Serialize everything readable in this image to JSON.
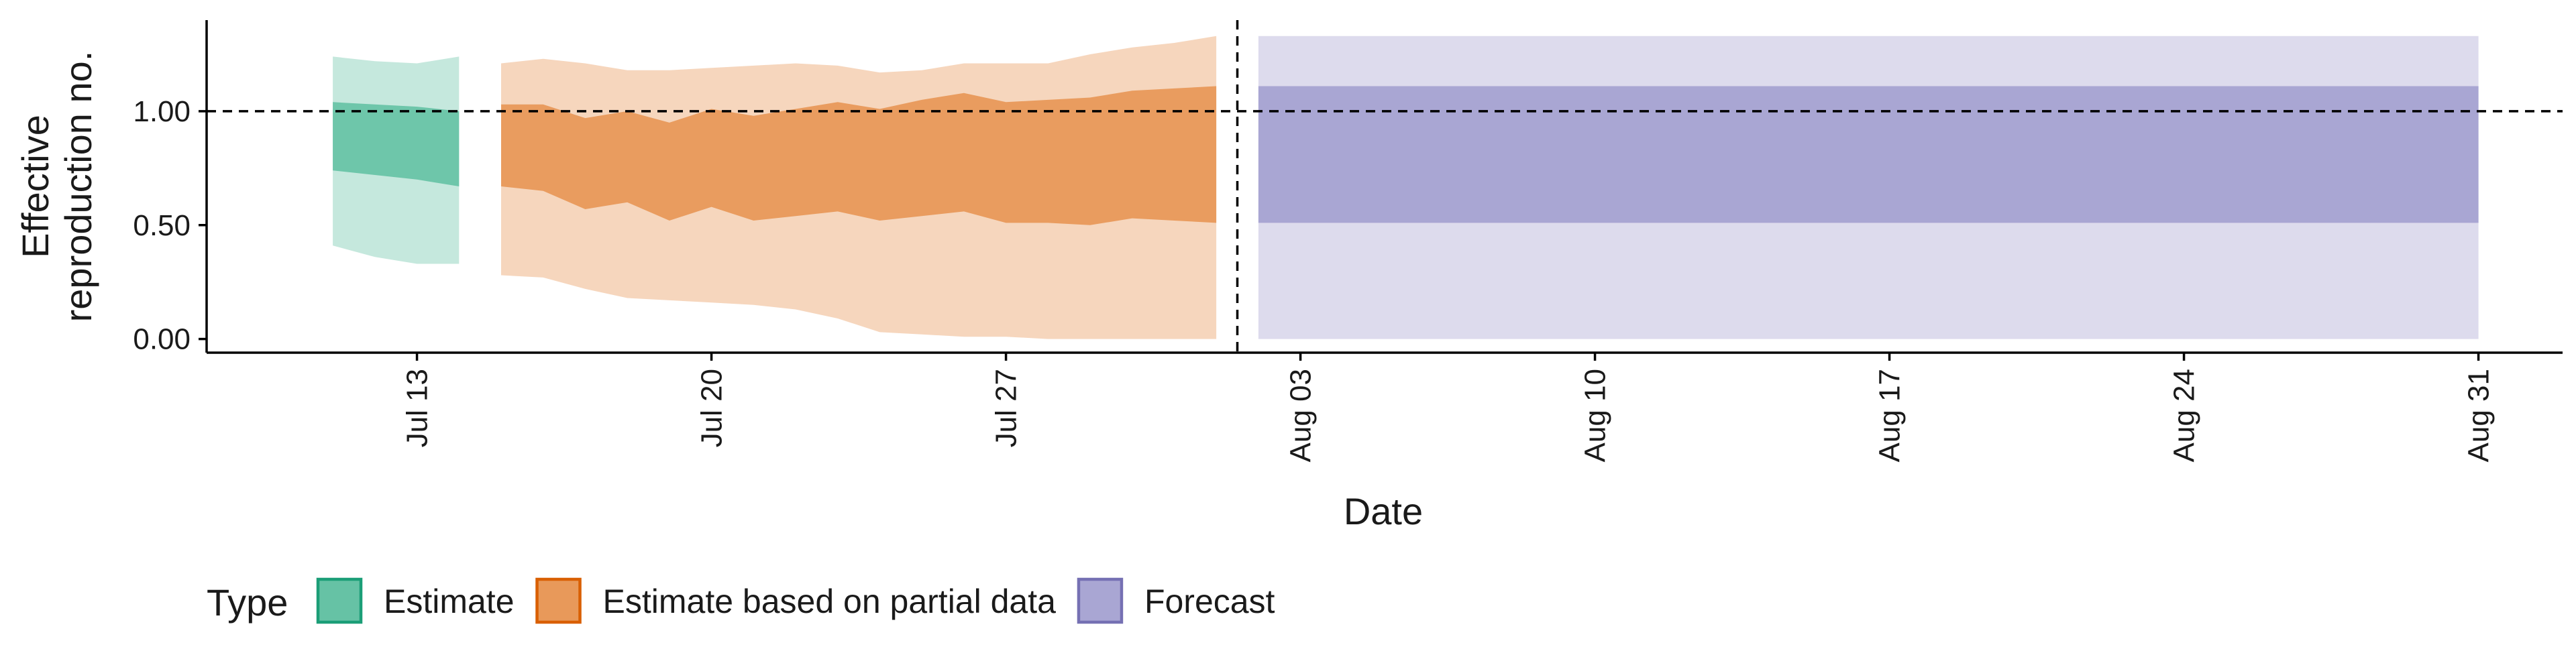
{
  "chart_data": {
    "type": "area",
    "xlabel": "Date",
    "ylabel_lines": [
      "Effective",
      "reproduction no."
    ],
    "x_ticks": [
      {
        "date": "2020-07-13",
        "label": "Jul 13"
      },
      {
        "date": "2020-07-20",
        "label": "Jul 20"
      },
      {
        "date": "2020-07-27",
        "label": "Jul 27"
      },
      {
        "date": "2020-08-03",
        "label": "Aug 03"
      },
      {
        "date": "2020-08-10",
        "label": "Aug 10"
      },
      {
        "date": "2020-08-17",
        "label": "Aug 17"
      },
      {
        "date": "2020-08-24",
        "label": "Aug 24"
      },
      {
        "date": "2020-08-31",
        "label": "Aug 31"
      }
    ],
    "y_ticks": [
      {
        "value": 0,
        "label": "0.00"
      },
      {
        "value": 0.5,
        "label": "0.50"
      },
      {
        "value": 1,
        "label": "1.00"
      }
    ],
    "xlim": [
      "2020-07-08",
      "2020-09-02"
    ],
    "ylim": [
      -0.06,
      1.4
    ],
    "reference_line_y": 1.0,
    "forecast_start_date": "2020-08-01",
    "grid": false,
    "legend": {
      "title": "Type",
      "position": "bottom-left"
    },
    "series": [
      {
        "name": "Estimate",
        "fill": "#66c2a5",
        "border": "#1b9e77",
        "outer_opacity": 0.38,
        "inner_opacity": 0.92,
        "points": [
          {
            "date": "2020-07-11",
            "lower90": 0.41,
            "upper90": 1.24,
            "lower50": 0.74,
            "upper50": 1.04
          },
          {
            "date": "2020-07-12",
            "lower90": 0.36,
            "upper90": 1.22,
            "lower50": 0.72,
            "upper50": 1.03
          },
          {
            "date": "2020-07-13",
            "lower90": 0.33,
            "upper90": 1.21,
            "lower50": 0.7,
            "upper50": 1.02
          },
          {
            "date": "2020-07-14",
            "lower90": 0.33,
            "upper90": 1.24,
            "lower50": 0.67,
            "upper50": 1.0
          }
        ]
      },
      {
        "name": "Estimate based on partial data",
        "fill": "#e8995a",
        "border": "#d95f02",
        "outer_opacity": 0.4,
        "inner_opacity": 0.95,
        "points": [
          {
            "date": "2020-07-15",
            "lower90": 0.28,
            "upper90": 1.21,
            "lower50": 0.67,
            "upper50": 1.03
          },
          {
            "date": "2020-07-16",
            "lower90": 0.27,
            "upper90": 1.23,
            "lower50": 0.65,
            "upper50": 1.03
          },
          {
            "date": "2020-07-17",
            "lower90": 0.22,
            "upper90": 1.21,
            "lower50": 0.57,
            "upper50": 0.97
          },
          {
            "date": "2020-07-18",
            "lower90": 0.18,
            "upper90": 1.18,
            "lower50": 0.6,
            "upper50": 1.0
          },
          {
            "date": "2020-07-19",
            "lower90": 0.17,
            "upper90": 1.18,
            "lower50": 0.52,
            "upper50": 0.95
          },
          {
            "date": "2020-07-20",
            "lower90": 0.16,
            "upper90": 1.19,
            "lower50": 0.58,
            "upper50": 1.01
          },
          {
            "date": "2020-07-21",
            "lower90": 0.15,
            "upper90": 1.2,
            "lower50": 0.52,
            "upper50": 0.98
          },
          {
            "date": "2020-07-22",
            "lower90": 0.13,
            "upper90": 1.21,
            "lower50": 0.54,
            "upper50": 1.01
          },
          {
            "date": "2020-07-23",
            "lower90": 0.09,
            "upper90": 1.2,
            "lower50": 0.56,
            "upper50": 1.04
          },
          {
            "date": "2020-07-24",
            "lower90": 0.03,
            "upper90": 1.17,
            "lower50": 0.52,
            "upper50": 1.01
          },
          {
            "date": "2020-07-25",
            "lower90": 0.02,
            "upper90": 1.18,
            "lower50": 0.54,
            "upper50": 1.05
          },
          {
            "date": "2020-07-26",
            "lower90": 0.01,
            "upper90": 1.21,
            "lower50": 0.56,
            "upper50": 1.08
          },
          {
            "date": "2020-07-27",
            "lower90": 0.01,
            "upper90": 1.21,
            "lower50": 0.51,
            "upper50": 1.04
          },
          {
            "date": "2020-07-28",
            "lower90": 0.0,
            "upper90": 1.21,
            "lower50": 0.51,
            "upper50": 1.05
          },
          {
            "date": "2020-07-29",
            "lower90": 0.0,
            "upper90": 1.25,
            "lower50": 0.5,
            "upper50": 1.06
          },
          {
            "date": "2020-07-30",
            "lower90": 0.0,
            "upper90": 1.28,
            "lower50": 0.53,
            "upper50": 1.09
          },
          {
            "date": "2020-07-31",
            "lower90": 0.0,
            "upper90": 1.3,
            "lower50": 0.52,
            "upper50": 1.1
          },
          {
            "date": "2020-08-01",
            "lower90": 0.0,
            "upper90": 1.33,
            "lower50": 0.51,
            "upper50": 1.11
          }
        ]
      },
      {
        "name": "Forecast",
        "fill": "#a9a6d3",
        "border": "#7570b3",
        "outer_opacity": 0.4,
        "inner_opacity": 1.0,
        "points": [
          {
            "date": "2020-08-02",
            "lower90": 0.0,
            "upper90": 1.33,
            "lower50": 0.51,
            "upper50": 1.11
          },
          {
            "date": "2020-08-31",
            "lower90": 0.0,
            "upper90": 1.33,
            "lower50": 0.51,
            "upper50": 1.11
          }
        ]
      }
    ]
  }
}
